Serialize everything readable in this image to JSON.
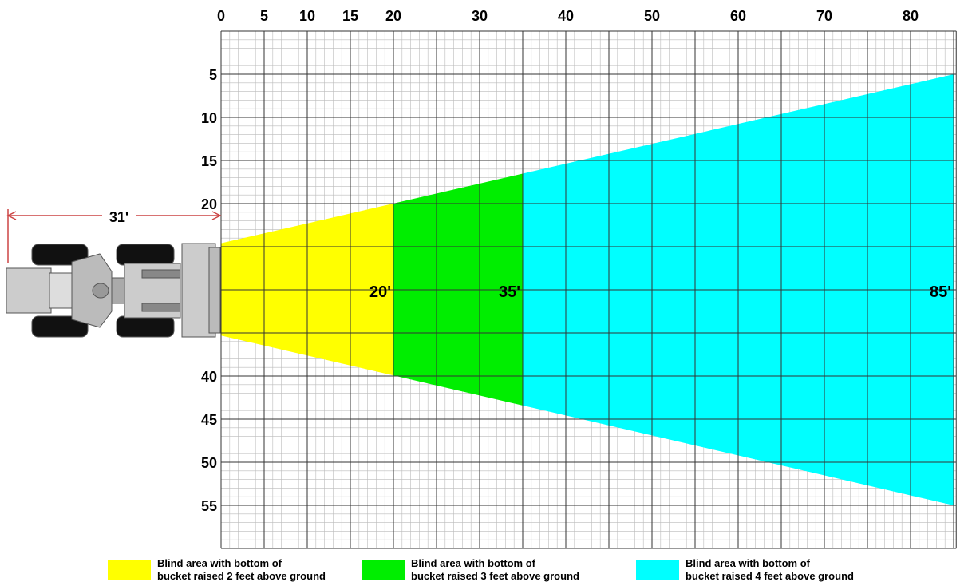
{
  "x_ticks": [
    0,
    5,
    10,
    15,
    20,
    30,
    40,
    50,
    60,
    70,
    80
  ],
  "y_ticks": [
    5,
    10,
    15,
    20,
    40,
    45,
    50,
    55
  ],
  "dimension_label": "31'",
  "zones": [
    {
      "reach": 20,
      "distance_label": "20'",
      "color": "#ffff00",
      "legend": [
        "Blind area with bottom of",
        "bucket raised 2 feet above ground"
      ]
    },
    {
      "reach": 35,
      "distance_label": "35'",
      "color": "#00ee00",
      "legend": [
        "Blind area with bottom of",
        "bucket raised 3 feet above ground"
      ]
    },
    {
      "reach": 85,
      "distance_label": "85'",
      "color": "#00ffff",
      "legend": [
        "Blind area with bottom of",
        "bucket raised 4 feet above ground"
      ]
    }
  ]
}
